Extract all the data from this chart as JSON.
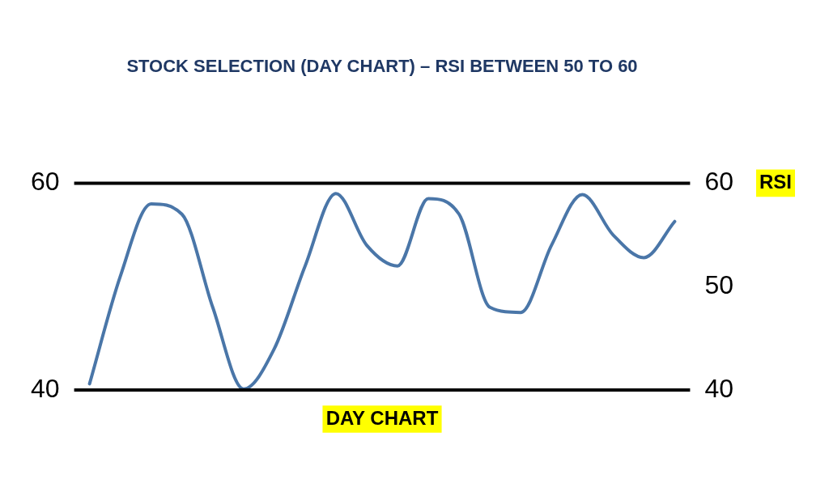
{
  "chart_data": {
    "type": "line",
    "title": "STOCK SELECTION (DAY CHART) – RSI BETWEEN 50 TO 60",
    "xlabel": "DAY CHART",
    "y2label": "RSI",
    "categories": [
      null,
      null,
      null,
      null,
      null,
      null,
      null,
      null,
      null,
      null,
      null,
      null,
      null,
      null,
      null,
      null,
      null,
      null,
      null,
      null
    ],
    "series": [
      {
        "color": "#4a76a8",
        "values": [
          40.6,
          51,
          58,
          57,
          48,
          40.1,
          44,
          52,
          59,
          54,
          52,
          58.5,
          57,
          48,
          47.5,
          54,
          58.9,
          55,
          52.8,
          56.3
        ]
      }
    ],
    "ylim": [
      40,
      60
    ],
    "yticks": [
      40,
      60
    ],
    "y2lim": [
      40,
      60
    ],
    "y2ticks": [
      40,
      50,
      60
    ],
    "ref_lines": [
      {
        "axis": "y",
        "value": 60,
        "color": "#000000"
      },
      {
        "axis": "y",
        "value": 40,
        "color": "#000000"
      }
    ],
    "grid": false,
    "legend": false,
    "marker": "none",
    "line_style": "solid",
    "tick_labels": "y"
  }
}
